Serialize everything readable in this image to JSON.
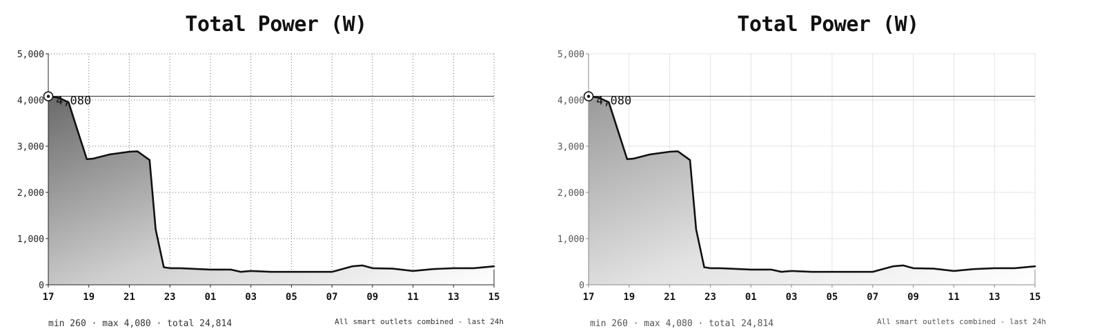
{
  "chart_data": [
    {
      "type": "area",
      "title": "Total Power (W)",
      "xlabel": "",
      "ylabel": "",
      "ylim": [
        0,
        5000
      ],
      "yticks": [
        "0",
        "1,000",
        "2,000",
        "3,000",
        "4,000",
        "5,000"
      ],
      "xticks": [
        "17",
        "19",
        "21",
        "23",
        "01",
        "03",
        "05",
        "07",
        "09",
        "11",
        "13",
        "15"
      ],
      "grid": true,
      "x": [
        0,
        0.5,
        1,
        1.4,
        1.9,
        2.2,
        3,
        4,
        4.4,
        5,
        5.3,
        5.7,
        6,
        6.5,
        8,
        9,
        9.5,
        10,
        11,
        12,
        13,
        14,
        15,
        15.5,
        16,
        17,
        18,
        19,
        20,
        21,
        22
      ],
      "series": [
        {
          "values": [
            4080,
            4050,
            3950,
            3400,
            2720,
            2730,
            2820,
            2880,
            2890,
            2700,
            1200,
            380,
            360,
            360,
            330,
            330,
            280,
            300,
            280,
            280,
            280,
            280,
            400,
            420,
            360,
            350,
            300,
            340,
            360,
            360,
            400
          ]
        }
      ],
      "peak": {
        "value": 4080,
        "label": "4,080"
      },
      "summary": "min 260 · max 4,080 · total 24,814",
      "note": "All smart outlets combined - last 24h"
    }
  ]
}
